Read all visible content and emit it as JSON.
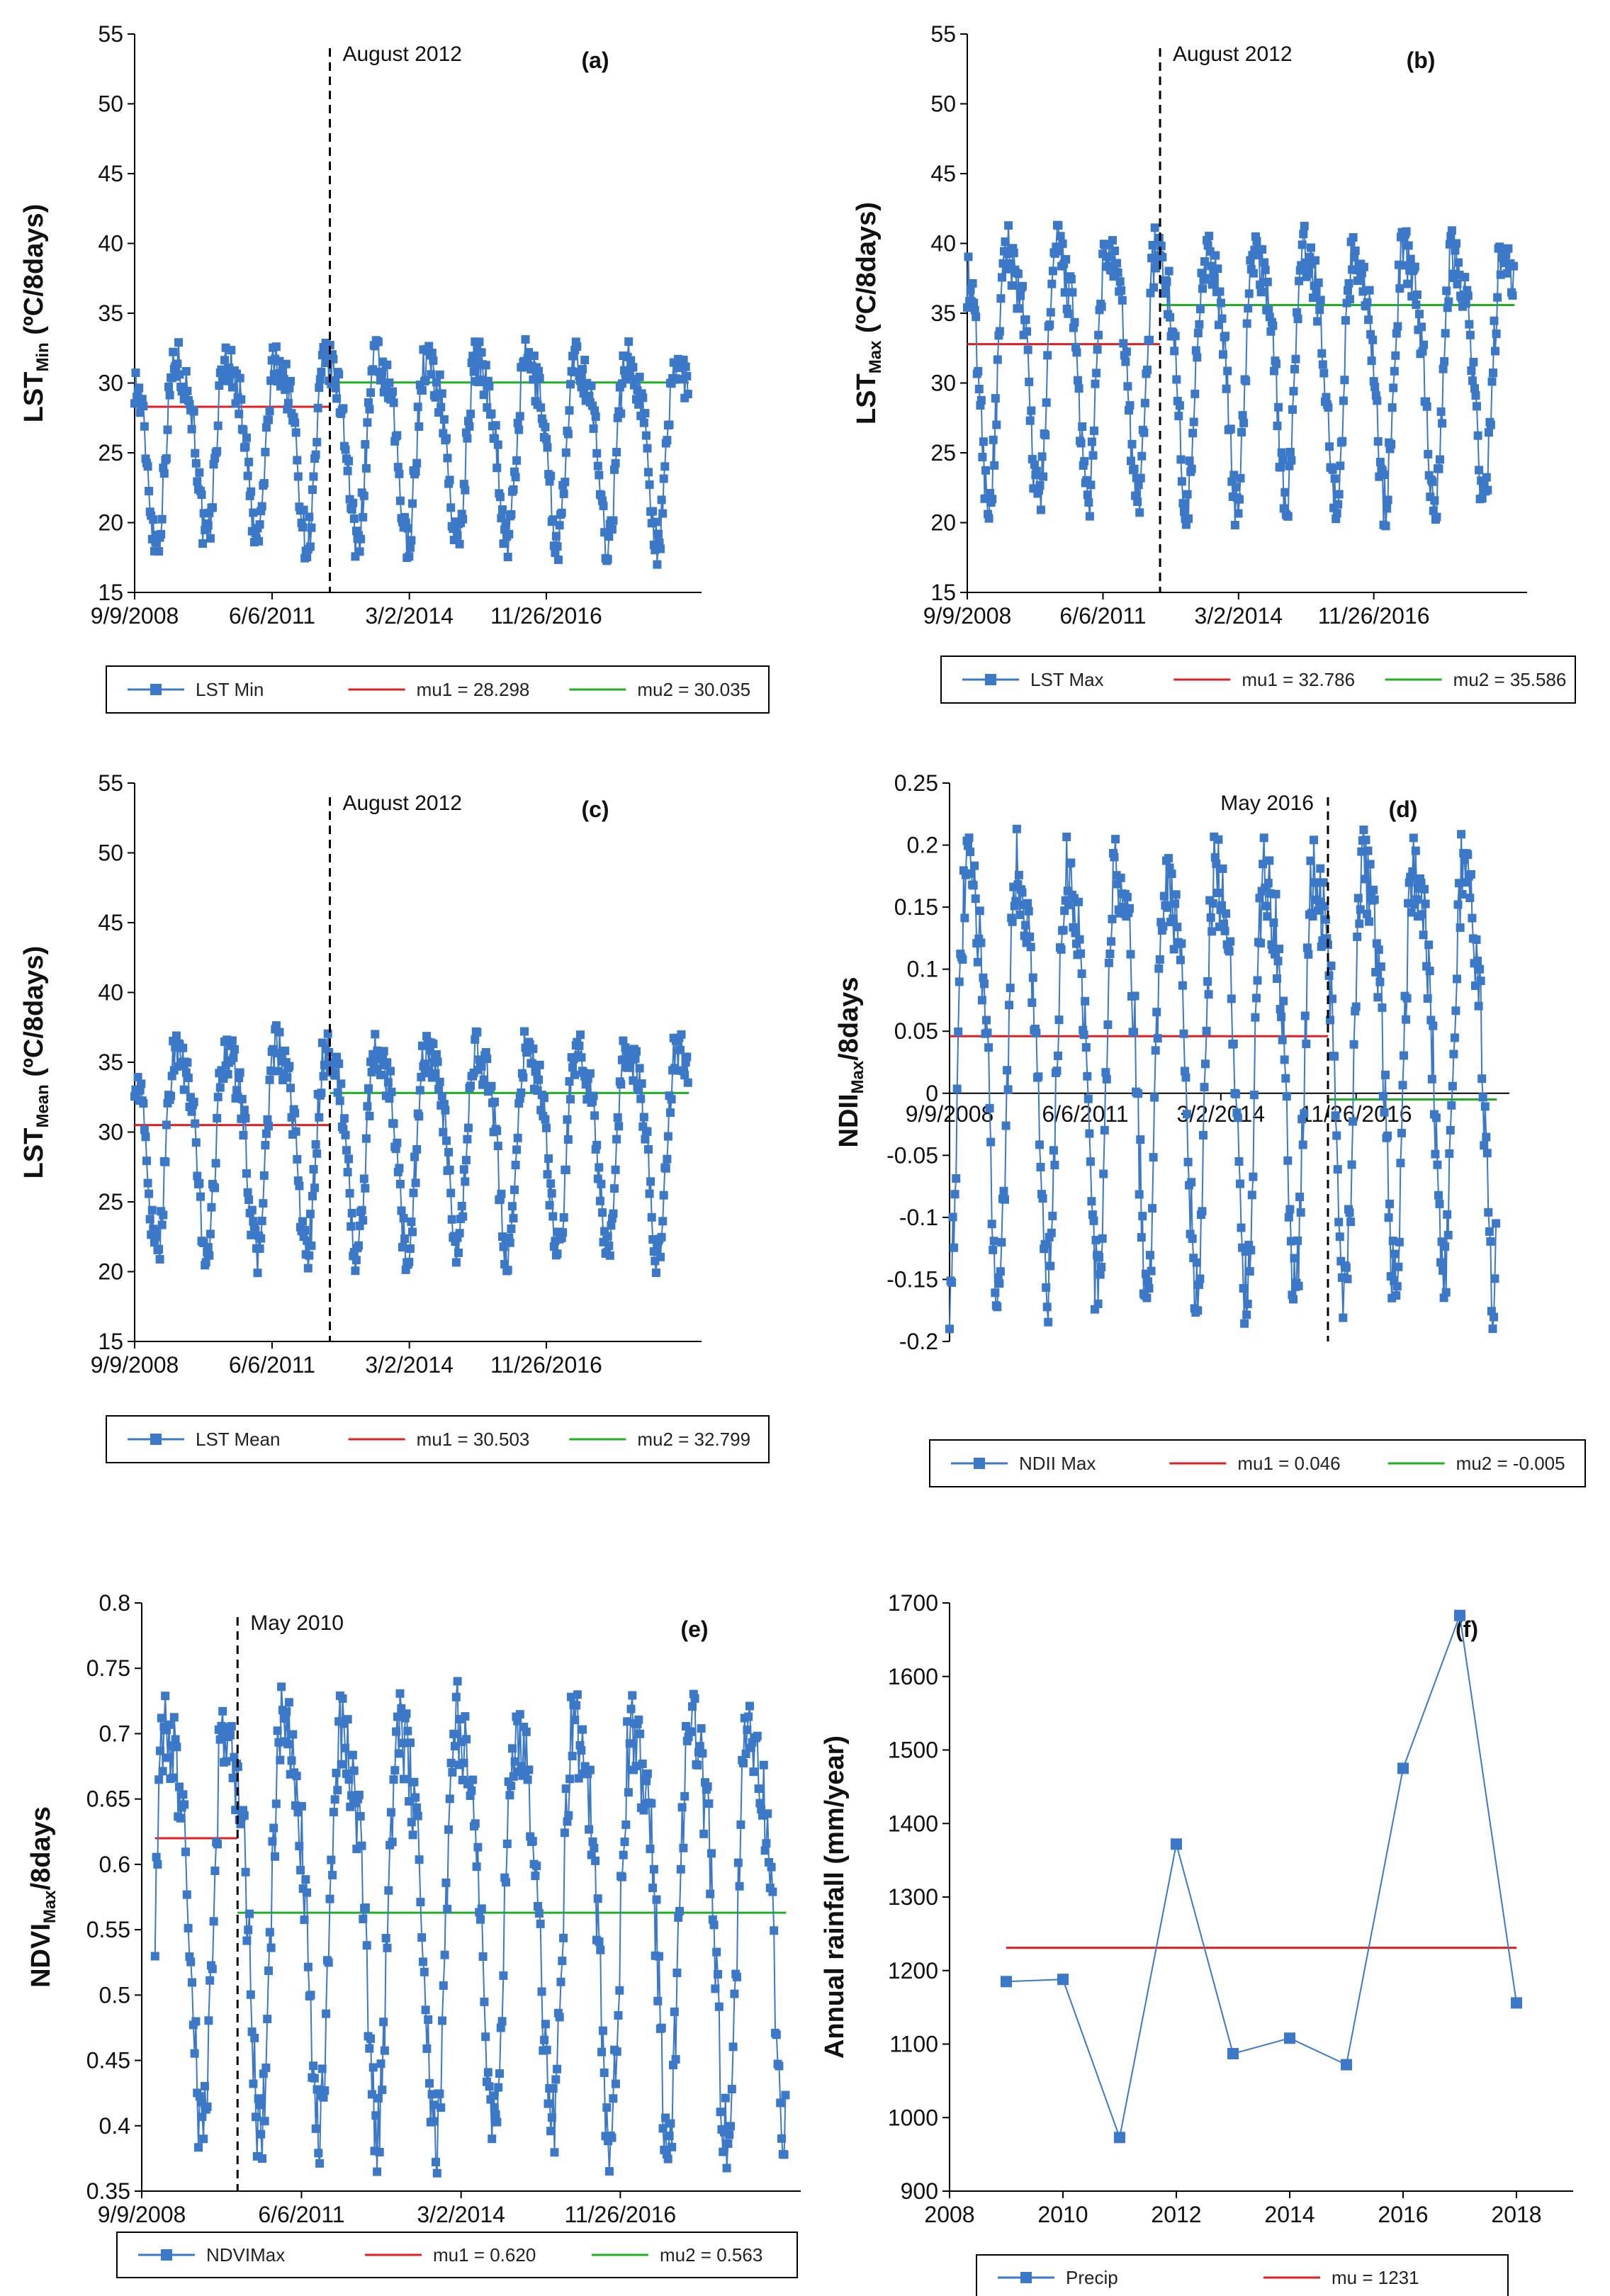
{
  "colors": {
    "series": "#3b79c8",
    "mu1": "#e02020",
    "mu2": "#20b020",
    "axis": "#000000"
  },
  "chart_data": [
    {
      "id": "a",
      "type": "line",
      "panel_label": "(a)",
      "ylabel_main": "LST",
      "ylabel_sub": "Min",
      "ylabel_rest": " (ºC/8days)",
      "ylim": [
        15,
        55
      ],
      "yticks": [
        15,
        20,
        25,
        30,
        35,
        40,
        45,
        50,
        55
      ],
      "xlim": [
        "2008-09-09",
        "2019-12-31"
      ],
      "xticks": [
        "9/9/2008",
        "6/6/2011",
        "3/2/2014",
        "11/26/2016"
      ],
      "change_point": "2012-08-01",
      "change_label": "August 2012",
      "series": [
        {
          "name": "LST Min",
          "start": "2008-09-09",
          "end": "2019-09-30",
          "base": 26.2,
          "amp": 6.2,
          "phase": 0.35,
          "noise": 1.6
        }
      ],
      "mu1": {
        "label": "mu1 = 28.298",
        "value": 28.298
      },
      "mu2": {
        "label": "mu2 = 30.035",
        "value": 30.035
      }
    },
    {
      "id": "b",
      "type": "line",
      "panel_label": "(b)",
      "ylabel_main": "LST",
      "ylabel_sub": "Max",
      "ylabel_rest": " (ºC/8days)",
      "ylim": [
        15,
        55
      ],
      "yticks": [
        15,
        20,
        25,
        30,
        35,
        40,
        45,
        50,
        55
      ],
      "xlim": [
        "2008-09-09",
        "2019-12-31"
      ],
      "xticks": [
        "9/9/2008",
        "6/6/2011",
        "3/2/2014",
        "11/26/2016"
      ],
      "change_point": "2012-08-01",
      "change_label": "August 2012",
      "series": [
        {
          "name": "LST Max",
          "start": "2008-09-09",
          "end": "2019-09-30",
          "base": 32.0,
          "amp": 8.5,
          "phase": 0.35,
          "noise": 2.0
        }
      ],
      "mu1": {
        "label": "mu1 = 32.786",
        "value": 32.786
      },
      "mu2": {
        "label": "mu2 = 35.586",
        "value": 35.586
      }
    },
    {
      "id": "c",
      "type": "line",
      "panel_label": "(c)",
      "ylabel_main": "LST",
      "ylabel_sub": "Mean",
      "ylabel_rest": " (ºC/8days)",
      "ylim": [
        15,
        55
      ],
      "yticks": [
        15,
        20,
        25,
        30,
        35,
        40,
        45,
        50,
        55
      ],
      "xlim": [
        "2008-09-09",
        "2019-12-31"
      ],
      "xticks": [
        "9/9/2008",
        "6/6/2011",
        "3/2/2014",
        "11/26/2016"
      ],
      "change_point": "2012-08-01",
      "change_label": "August 2012",
      "series": [
        {
          "name": "LST Mean",
          "start": "2008-09-09",
          "end": "2019-09-30",
          "base": 29.8,
          "amp": 7.0,
          "phase": 0.35,
          "noise": 1.7
        }
      ],
      "mu1": {
        "label": "mu1 = 30.503",
        "value": 30.503
      },
      "mu2": {
        "label": "mu2 = 32.799",
        "value": 32.799
      }
    },
    {
      "id": "d",
      "type": "line",
      "panel_label": "(d)",
      "ylabel_main": "NDII",
      "ylabel_sub": "Max",
      "ylabel_rest": "/8days",
      "ylim": [
        -0.2,
        0.25
      ],
      "yticks": [
        -0.2,
        -0.15,
        -0.1,
        -0.05,
        0,
        0.05,
        0.1,
        0.15,
        0.2,
        0.25
      ],
      "xlim": [
        "2008-09-09",
        "2019-12-31"
      ],
      "xticks": [
        "9/9/2008",
        "6/6/2011",
        "3/2/2014",
        "11/26/2016"
      ],
      "xaxis_at_zero": true,
      "change_point": "2016-05-01",
      "change_label": "May 2016",
      "series": [
        {
          "name": "NDII Max",
          "start": "2008-09-09",
          "end": "2019-09-30",
          "base": 0.04,
          "amp": 0.16,
          "phase": 0.9,
          "noise": 0.035
        }
      ],
      "mu1": {
        "label": "mu1 = 0.046",
        "value": 0.046
      },
      "mu2": {
        "label": "mu2 = -0.005",
        "value": -0.005
      }
    },
    {
      "id": "e",
      "type": "line",
      "panel_label": "(e)",
      "ylabel_main": "NDVI",
      "ylabel_sub": "Max",
      "ylabel_rest": "/8days",
      "ylim": [
        0.35,
        0.8
      ],
      "yticks": [
        0.35,
        0.4,
        0.45,
        0.5,
        0.55,
        0.6,
        0.65,
        0.7,
        0.75,
        0.8
      ],
      "xlim": [
        "2008-09-09",
        "2019-12-31"
      ],
      "xticks": [
        "9/9/2008",
        "6/6/2011",
        "3/2/2014",
        "11/26/2016"
      ],
      "change_point": "2010-05-01",
      "change_label": "May 2010",
      "series": [
        {
          "name": "NDVIMax",
          "start": "2008-12-01",
          "end": "2019-09-30",
          "base": 0.575,
          "amp": 0.15,
          "phase": 0.95,
          "noise": 0.035
        }
      ],
      "mu1": {
        "label": "mu1 = 0.620",
        "value": 0.62
      },
      "mu2": {
        "label": "mu2 = 0.563",
        "value": 0.563
      }
    },
    {
      "id": "f",
      "type": "line",
      "panel_label": "(f)",
      "ylabel": "Annual rainfall (mm/year)",
      "ylim": [
        900,
        1700
      ],
      "yticks": [
        900,
        1000,
        1100,
        1200,
        1300,
        1400,
        1500,
        1600,
        1700
      ],
      "xlim": [
        2008,
        2019
      ],
      "xticks": [
        2008,
        2010,
        2012,
        2014,
        2016,
        2018
      ],
      "series": [
        {
          "name": "Precip",
          "x": [
            2009,
            2010,
            2011,
            2012,
            2013,
            2014,
            2015,
            2016,
            2017,
            2018
          ],
          "values": [
            1185,
            1188,
            973,
            1372,
            1087,
            1108,
            1072,
            1475,
            1683,
            1156
          ]
        }
      ],
      "mu": {
        "label": "mu = 1231",
        "value": 1231
      }
    }
  ]
}
